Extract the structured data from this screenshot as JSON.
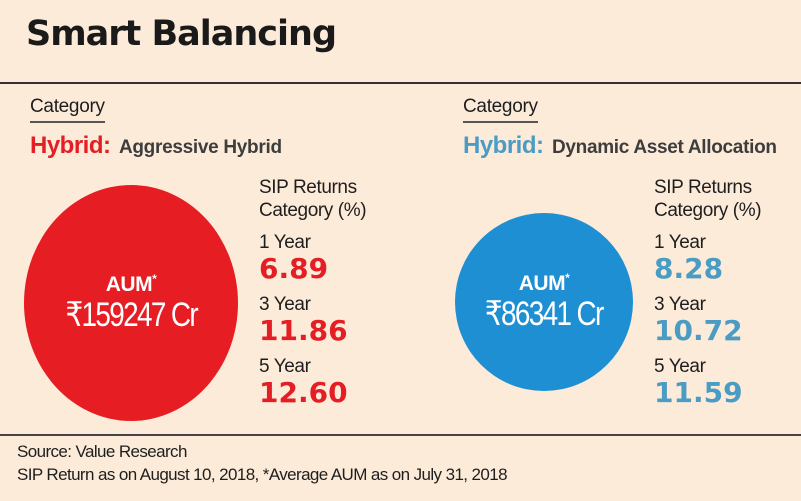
{
  "title": "Smart Balancing",
  "panels": [
    {
      "category_label": "Category",
      "category_main": "Hybrid:",
      "category_sub": "Aggressive Hybrid",
      "accent_color": "#e31e24",
      "circle_color": "#e71d24",
      "aum_label": "AUM",
      "aum_marker": "*",
      "aum_value": "₹159247 Cr",
      "sip_heading_line1": "SIP Returns",
      "sip_heading_line2": "Category (%)",
      "returns": [
        {
          "period": "1 Year",
          "value": "6.89"
        },
        {
          "period": "3 Year",
          "value": "11.86"
        },
        {
          "period": "5 Year",
          "value": "12.60"
        }
      ]
    },
    {
      "category_label": "Category",
      "category_main": "Hybrid:",
      "category_sub": "Dynamic Asset Allocation",
      "accent_color": "#4a9cc4",
      "circle_color": "#1e8fd3",
      "aum_label": "AUM",
      "aum_marker": "*",
      "aum_value": "₹86341 Cr",
      "sip_heading_line1": "SIP Returns",
      "sip_heading_line2": "Category (%)",
      "returns": [
        {
          "period": "1 Year",
          "value": "8.28"
        },
        {
          "period": "3 Year",
          "value": "10.72"
        },
        {
          "period": "5 Year",
          "value": "11.59"
        }
      ]
    }
  ],
  "footer": {
    "source": "Source: Value Research",
    "note": "SIP Return as on August 10, 2018,  *Average AUM as on July 31, 2018"
  }
}
